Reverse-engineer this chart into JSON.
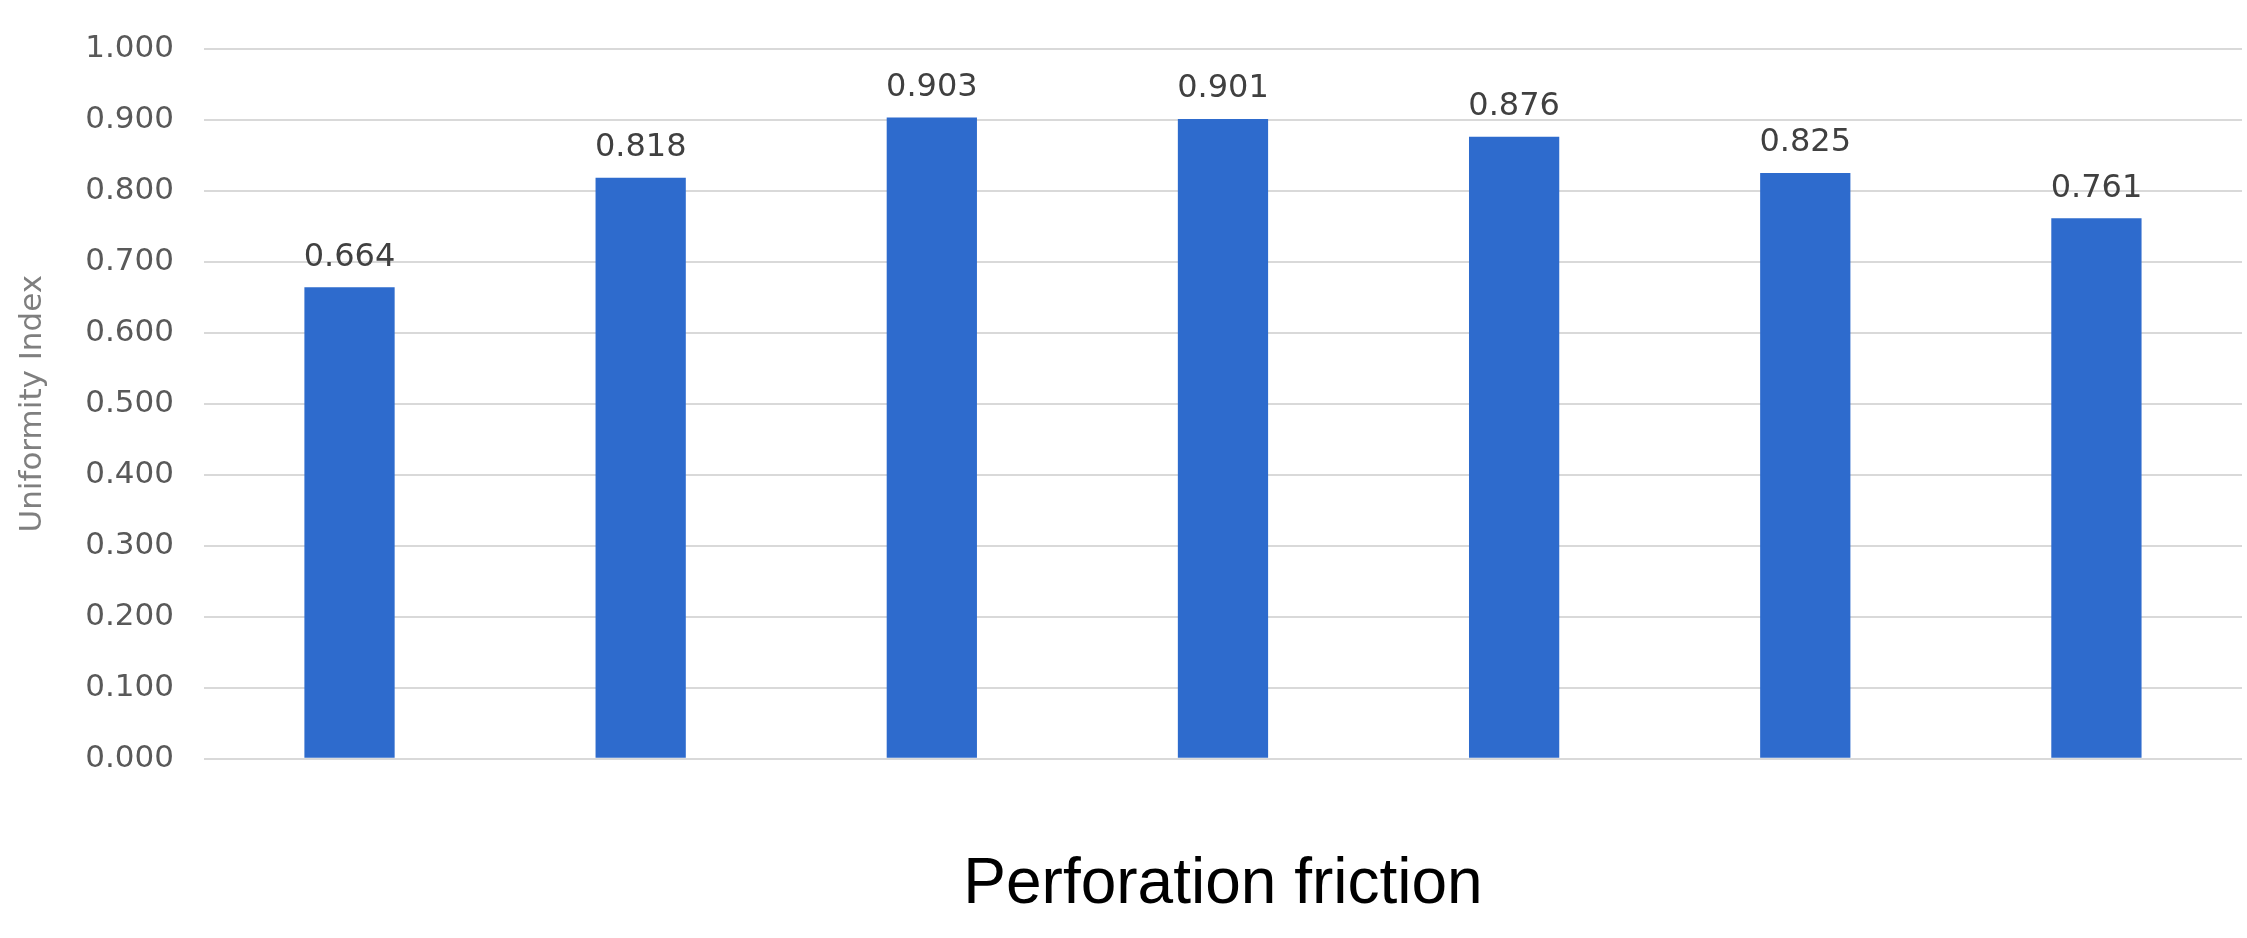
{
  "chart_data": {
    "type": "bar",
    "xlabel": "Perforation friction",
    "ylabel": "Uniformity Index",
    "categories": [
      null,
      null,
      null,
      null,
      null,
      null,
      null
    ],
    "values": [
      0.664,
      0.818,
      0.903,
      0.901,
      0.876,
      0.825,
      0.761
    ],
    "color": "#2e6bcd",
    "ylim": [
      0,
      1
    ],
    "yticks": [
      {
        "value": 0,
        "label": "0.000"
      },
      {
        "value": 0.1,
        "label": "0.100"
      },
      {
        "value": 0.2,
        "label": "0.200"
      },
      {
        "value": 0.3,
        "label": "0.300"
      },
      {
        "value": 0.4,
        "label": "0.400"
      },
      {
        "value": 0.5,
        "label": "0.500"
      },
      {
        "value": 0.6,
        "label": "0.600"
      },
      {
        "value": 0.7,
        "label": "0.700"
      },
      {
        "value": 0.8,
        "label": "0.800"
      },
      {
        "value": 0.9,
        "label": "0.900"
      },
      {
        "value": 1,
        "label": "1.000"
      }
    ],
    "grid": "y",
    "data_labels": true
  }
}
